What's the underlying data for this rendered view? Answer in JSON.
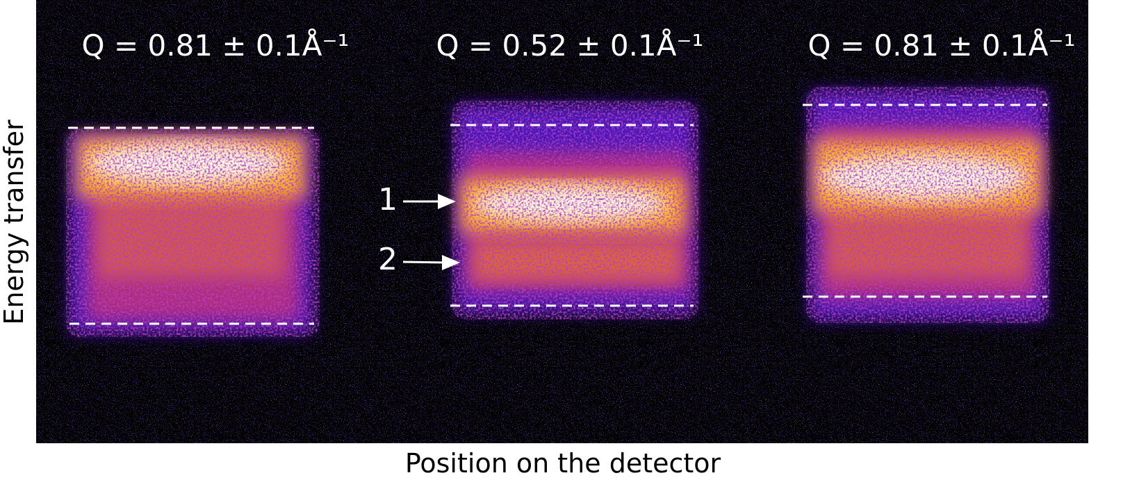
{
  "figure": {
    "panels": [
      {
        "title": "Q = 0.81 ± 0.1Å⁻¹"
      },
      {
        "title": "Q = 0.52 ± 0.1Å⁻¹"
      },
      {
        "title": "Q = 0.81 ± 0.1Å⁻¹"
      }
    ],
    "markers": [
      "1",
      "2"
    ],
    "x_label": "Position on the detector",
    "y_label": "Energy transfer"
  }
}
